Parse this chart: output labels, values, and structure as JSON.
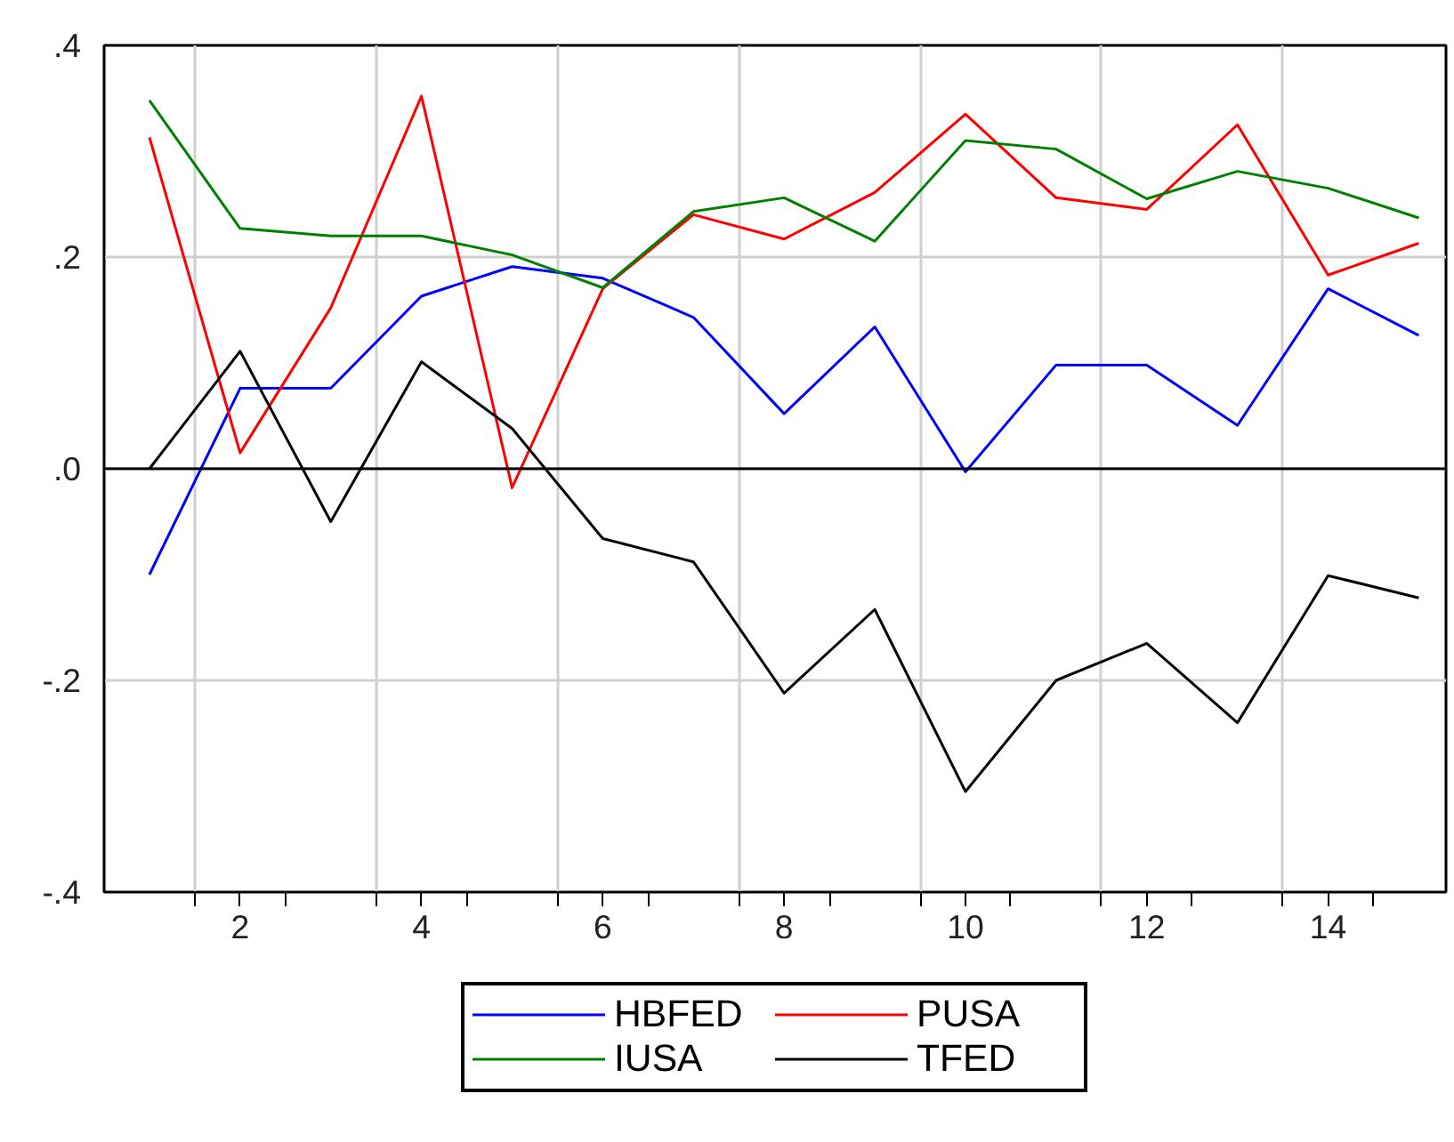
{
  "chart_data": {
    "type": "line",
    "x": [
      1,
      2,
      3,
      4,
      5,
      6,
      7,
      8,
      9,
      10,
      11,
      12,
      13,
      14,
      15
    ],
    "series": [
      {
        "name": "HBFED",
        "color": "#0000ff",
        "values": [
          -0.1,
          0.076,
          0.076,
          0.163,
          0.191,
          0.18,
          0.143,
          0.052,
          0.134,
          -0.003,
          0.098,
          0.098,
          0.041,
          0.17,
          0.126
        ]
      },
      {
        "name": "PUSA",
        "color": "#ff0000",
        "values": [
          0.313,
          0.015,
          0.152,
          0.352,
          -0.018,
          0.17,
          0.24,
          0.217,
          0.261,
          0.335,
          0.256,
          0.245,
          0.325,
          0.183,
          0.213
        ]
      },
      {
        "name": "IUSA",
        "color": "#008000",
        "values": [
          0.348,
          0.227,
          0.22,
          0.22,
          0.202,
          0.171,
          0.243,
          0.256,
          0.215,
          0.31,
          0.302,
          0.255,
          0.281,
          0.265,
          0.237
        ]
      },
      {
        "name": "TFED",
        "color": "#000000",
        "values": [
          0.0,
          0.111,
          -0.05,
          0.101,
          0.038,
          -0.066,
          -0.088,
          -0.212,
          -0.133,
          -0.305,
          -0.2,
          -0.165,
          -0.24,
          -0.101,
          -0.122
        ]
      }
    ],
    "xlim": [
      0.5,
      15.3
    ],
    "xticks": [
      {
        "value": 1.5,
        "label": null
      },
      {
        "value": 2,
        "label": "2"
      },
      {
        "value": 2.5,
        "label": null
      },
      {
        "value": 3.5,
        "label": null
      },
      {
        "value": 4,
        "label": "4"
      },
      {
        "value": 4.5,
        "label": null
      },
      {
        "value": 5.5,
        "label": null
      },
      {
        "value": 6,
        "label": "6"
      },
      {
        "value": 6.5,
        "label": null
      },
      {
        "value": 7.5,
        "label": null
      },
      {
        "value": 8,
        "label": "8"
      },
      {
        "value": 8.5,
        "label": null
      },
      {
        "value": 9.5,
        "label": null
      },
      {
        "value": 10,
        "label": "10"
      },
      {
        "value": 10.5,
        "label": null
      },
      {
        "value": 11.5,
        "label": null
      },
      {
        "value": 12,
        "label": "12"
      },
      {
        "value": 12.5,
        "label": null
      },
      {
        "value": 13.5,
        "label": null
      },
      {
        "value": 14,
        "label": "14"
      },
      {
        "value": 14.5,
        "label": null
      }
    ],
    "ylim": [
      -0.4,
      0.4
    ],
    "yticks": [
      {
        "value": -0.4,
        "label": "-.4"
      },
      {
        "value": -0.2,
        "label": "-.2"
      },
      {
        "value": 0,
        "label": ".0"
      },
      {
        "value": 0.2,
        "label": ".2"
      },
      {
        "value": 0.4,
        "label": ".4"
      }
    ],
    "ref_lines": [
      {
        "axis": "y",
        "value": 0,
        "color": "#000000"
      }
    ],
    "grid": true,
    "legend": "bottom",
    "marker": "none",
    "line_style": "solid"
  }
}
